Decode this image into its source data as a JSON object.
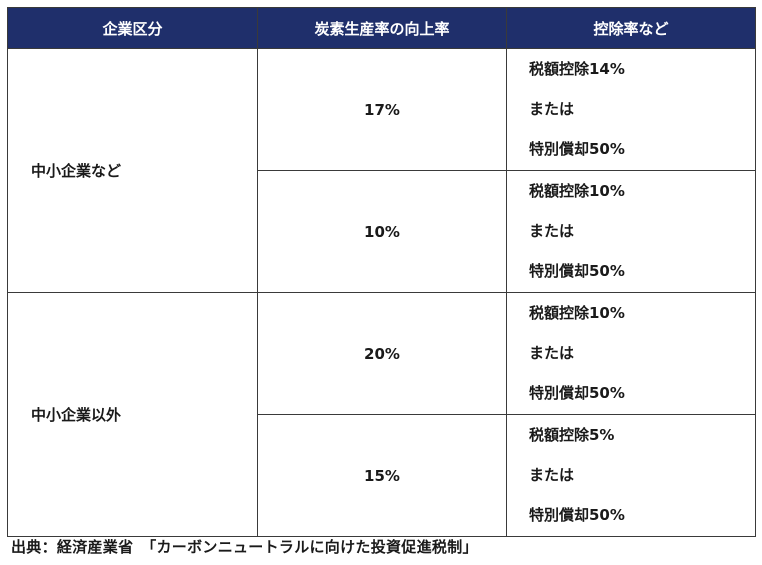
{
  "table": {
    "headers": [
      "企業区分",
      "炭素生産率の向上率",
      "控除率など"
    ],
    "groups": [
      {
        "category": "中小企業など",
        "rows": [
          {
            "rate": "17%",
            "deduction": [
              "税額控除14%",
              "または",
              "特別償却50%"
            ]
          },
          {
            "rate": "10%",
            "deduction": [
              "税額控除10%",
              "または",
              "特別償却50%"
            ]
          }
        ]
      },
      {
        "category": "中小企業以外",
        "rows": [
          {
            "rate": "20%",
            "deduction": [
              "税額控除10%",
              "または",
              "特別償却50%"
            ]
          },
          {
            "rate": "15%",
            "deduction": [
              "税額控除5%",
              "または",
              "特別償却50%"
            ]
          }
        ]
      }
    ]
  },
  "source": "出典：経済産業省　「カーボンニュートラルに向けた投資促進税制」",
  "colors": {
    "header_bg": "#1f2f6b",
    "header_text": "#ffffff",
    "border": "#3a3a3a"
  }
}
